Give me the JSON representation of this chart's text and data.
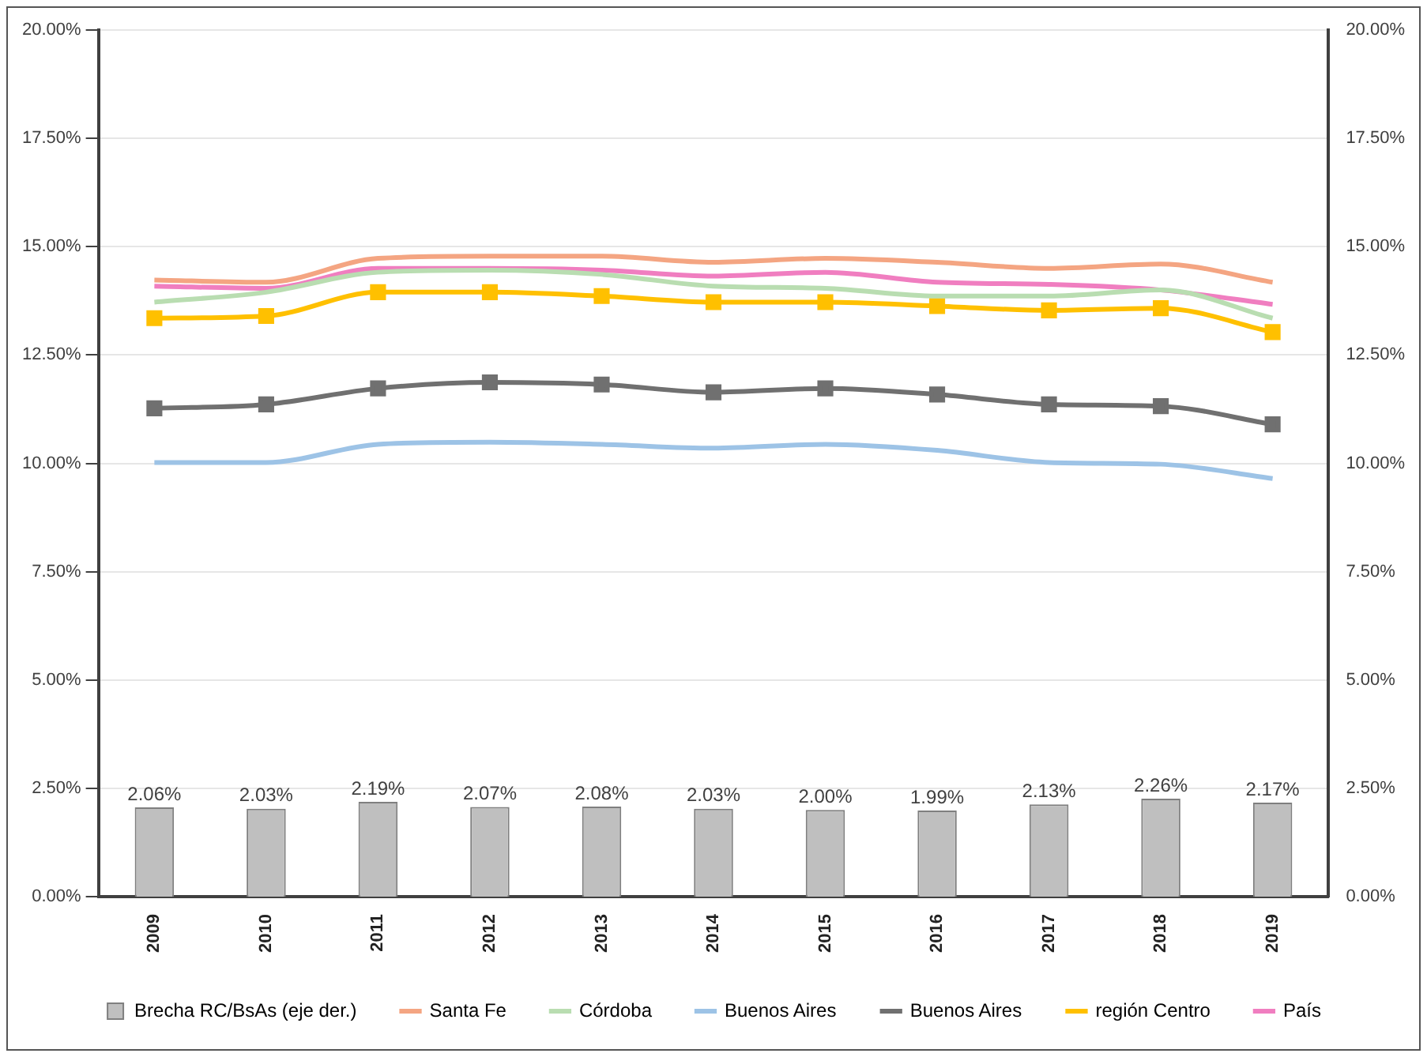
{
  "chart_data": {
    "type": "line",
    "categories": [
      "2009",
      "2010",
      "2011",
      "2012",
      "2013",
      "2014",
      "2015",
      "2016",
      "2017",
      "2018",
      "2019"
    ],
    "series": [
      {
        "name": "Brecha RC/BsAs (eje der.)",
        "type": "bar",
        "axis": "y2",
        "color": "#bfbfbf",
        "values": [
          2.06,
          2.03,
          2.19,
          2.07,
          2.08,
          2.03,
          2.0,
          1.99,
          2.13,
          2.26,
          2.17
        ],
        "value_labels": [
          "2.06%",
          "2.03%",
          "2.19%",
          "2.07%",
          "2.08%",
          "2.03%",
          "2.00%",
          "1.99%",
          "2.13%",
          "2.26%",
          "2.17%"
        ]
      },
      {
        "name": "Santa Fe",
        "color": "#f4a582",
        "marker": "none",
        "values": [
          14.23,
          14.18,
          14.73,
          14.78,
          14.78,
          14.64,
          14.73,
          14.64,
          14.5,
          14.6,
          14.18
        ]
      },
      {
        "name": "Córdoba",
        "color": "#b9ddb1",
        "marker": "none",
        "values": [
          13.72,
          13.95,
          14.41,
          14.46,
          14.36,
          14.09,
          14.04,
          13.86,
          13.86,
          14.0,
          13.35
        ]
      },
      {
        "name": "Buenos Aires",
        "color": "#9dc3e6",
        "marker": "none",
        "values": [
          10.02,
          10.02,
          10.44,
          10.49,
          10.44,
          10.35,
          10.44,
          10.3,
          10.02,
          9.98,
          9.65
        ]
      },
      {
        "name": "Buenos Aires",
        "color": "#707070",
        "marker": "square",
        "values": [
          11.27,
          11.36,
          11.73,
          11.87,
          11.82,
          11.64,
          11.73,
          11.59,
          11.36,
          11.32,
          10.9
        ]
      },
      {
        "name": "región Centro",
        "color": "#ffc000",
        "marker": "square",
        "values": [
          13.35,
          13.4,
          13.95,
          13.95,
          13.86,
          13.72,
          13.72,
          13.63,
          13.53,
          13.58,
          13.03
        ]
      },
      {
        "name": "País",
        "color": "#f07ec0",
        "marker": "none",
        "values": [
          14.09,
          14.04,
          14.5,
          14.5,
          14.46,
          14.32,
          14.41,
          14.18,
          14.13,
          14.0,
          13.67
        ]
      }
    ],
    "ylim": [
      0,
      20
    ],
    "yticks": [
      {
        "value": 0,
        "label": "0.00%"
      },
      {
        "value": 2.5,
        "label": "2.50%"
      },
      {
        "value": 5,
        "label": "5.00%"
      },
      {
        "value": 7.5,
        "label": "7.50%"
      },
      {
        "value": 10,
        "label": "10.00%"
      },
      {
        "value": 12.5,
        "label": "12.50%"
      },
      {
        "value": 15,
        "label": "15.00%"
      },
      {
        "value": 17.5,
        "label": "17.50%"
      },
      {
        "value": 20,
        "label": "20.00%"
      }
    ],
    "y2lim": [
      0,
      20
    ],
    "y2ticks": [
      {
        "value": 0,
        "label": "0.00%"
      },
      {
        "value": 2.5,
        "label": "2.50%"
      },
      {
        "value": 5,
        "label": "5.00%"
      },
      {
        "value": 7.5,
        "label": "7.50%"
      },
      {
        "value": 10,
        "label": "10.00%"
      },
      {
        "value": 12.5,
        "label": "12.50%"
      },
      {
        "value": 15,
        "label": "15.00%"
      },
      {
        "value": 17.5,
        "label": "17.50%"
      },
      {
        "value": 20,
        "label": "20.00%"
      }
    ],
    "grid": "y",
    "legend": "bottom"
  }
}
